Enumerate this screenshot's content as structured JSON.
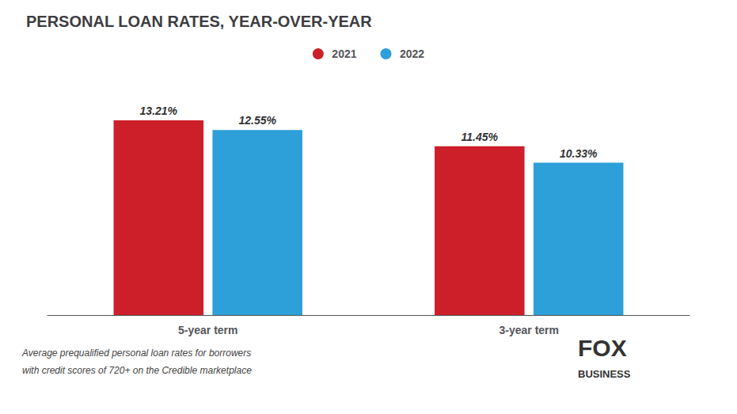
{
  "chart_data": {
    "type": "bar",
    "title": "PERSONAL LOAN RATES, YEAR-OVER-YEAR",
    "categories": [
      "5-year term",
      "3-year term"
    ],
    "series": [
      {
        "name": "2021",
        "color": "#cc1f2a",
        "values": [
          13.21,
          11.45
        ],
        "value_labels": [
          "13.21%",
          "11.45%"
        ]
      },
      {
        "name": "2022",
        "color": "#2d9fd9",
        "values": [
          12.55,
          10.33
        ],
        "value_labels": [
          "12.55%",
          "10.33%"
        ]
      }
    ],
    "ylim": [
      0,
      16
    ],
    "tick_labels": "x",
    "grid": false,
    "legend": "top",
    "data_labels": true,
    "annotations": [
      "Average prequalified personal loan rates for borrowers",
      "with credit scores of 720+ on the Credible marketplace",
      "FOX",
      "BUSINESS"
    ]
  }
}
